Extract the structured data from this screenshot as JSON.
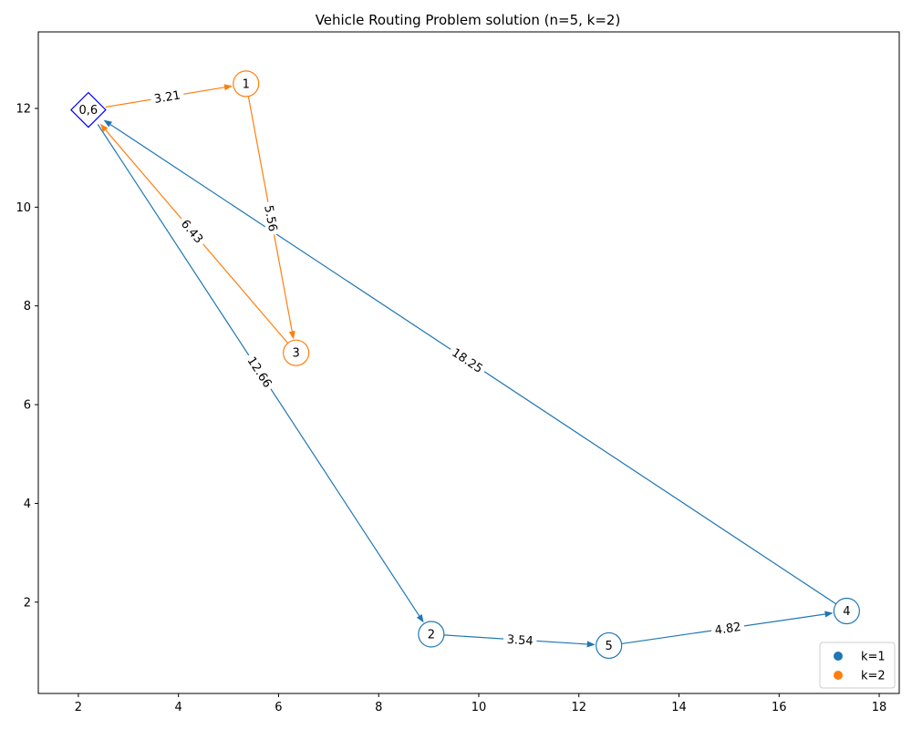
{
  "chart_data": {
    "type": "scatter",
    "title": "Vehicle Routing Problem solution (n=5, k=2)",
    "xlabel": "",
    "ylabel": "",
    "xlim": [
      1.2,
      18.4
    ],
    "ylim": [
      0.15,
      13.55
    ],
    "xticks": [
      2,
      4,
      6,
      8,
      10,
      12,
      14,
      16,
      18
    ],
    "yticks": [
      2,
      4,
      6,
      8,
      10,
      12
    ],
    "grid": false,
    "legend_position": "bottom-right",
    "depot": {
      "label": "0,6",
      "x": 2.2,
      "y": 11.97,
      "color": "#0000ff",
      "marker": "diamond"
    },
    "nodes": [
      {
        "label": "1",
        "x": 5.35,
        "y": 12.5,
        "route": 2
      },
      {
        "label": "2",
        "x": 9.05,
        "y": 1.35,
        "route": 1
      },
      {
        "label": "3",
        "x": 6.35,
        "y": 7.05,
        "route": 2
      },
      {
        "label": "4",
        "x": 17.35,
        "y": 1.82,
        "route": 1
      },
      {
        "label": "5",
        "x": 12.6,
        "y": 1.12,
        "route": 1
      }
    ],
    "series": [
      {
        "name": "k=1",
        "color": "#1f77b4",
        "edges": [
          {
            "from": "0,6",
            "to": "2",
            "label": "12.66"
          },
          {
            "from": "2",
            "to": "5",
            "label": "3.54"
          },
          {
            "from": "5",
            "to": "4",
            "label": "4.82"
          },
          {
            "from": "4",
            "to": "0,6",
            "label": "18.25"
          }
        ]
      },
      {
        "name": "k=2",
        "color": "#ff7f0e",
        "edges": [
          {
            "from": "0,6",
            "to": "1",
            "label": "3.21"
          },
          {
            "from": "1",
            "to": "3",
            "label": "5.56"
          },
          {
            "from": "3",
            "to": "0,6",
            "label": "6.43"
          }
        ]
      }
    ]
  }
}
